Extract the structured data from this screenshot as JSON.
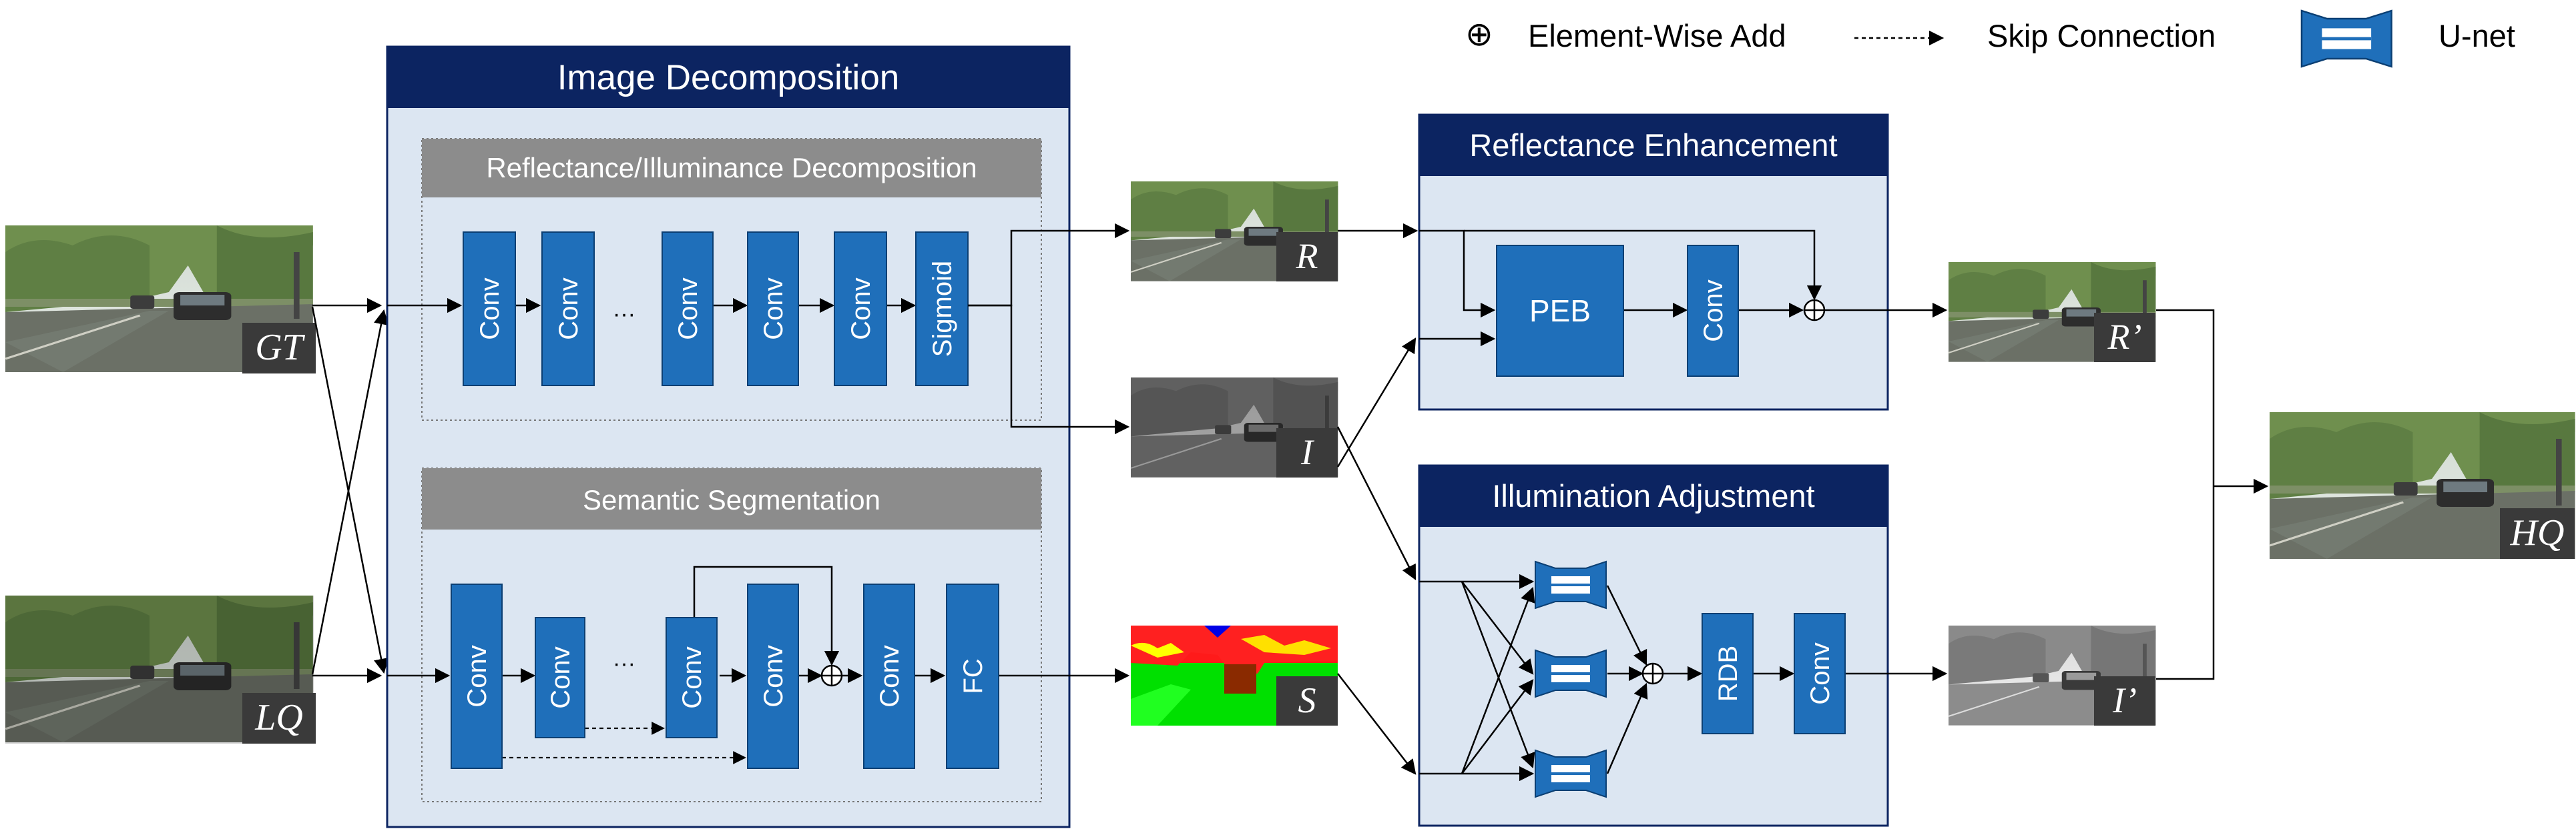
{
  "legend": {
    "add_symbol": "⊕",
    "add_label": "Element-Wise Add",
    "skip_label": "Skip Connection",
    "unet_label": "U-net"
  },
  "inputs": {
    "gt": "GT",
    "lq": "LQ"
  },
  "decomposition": {
    "title": "Image Decomposition",
    "ri": {
      "title": "Reflectance/Illuminance Decomposition",
      "layers": [
        "Conv",
        "Conv",
        "Conv",
        "Conv",
        "Conv",
        "Sigmoid"
      ],
      "ellipsis": "···"
    },
    "seg": {
      "title": "Semantic Segmentation",
      "layers": [
        "Conv",
        "Conv",
        "Conv",
        "Conv",
        "Conv",
        "FC"
      ],
      "ellipsis": "···",
      "add_symbol": "⊕"
    }
  },
  "maps": {
    "r": "R",
    "i": "I",
    "s": "S"
  },
  "enhancement": {
    "title": "Reflectance Enhancement",
    "peb": "PEB",
    "conv": "Conv",
    "add_symbol": "⊕"
  },
  "adjustment": {
    "title": "Illumination Adjustment",
    "rdb": "RDB",
    "conv": "Conv",
    "add_symbol": "⊕"
  },
  "outputs": {
    "r_prime": "R’",
    "i_prime": "I’",
    "hq": "HQ"
  },
  "colors": {
    "navy": "#0c2461",
    "panel_bg": "#dce6f2",
    "block": "#1f6fba",
    "grey_header": "#8c8c8c",
    "tag_bg": "#3a3a3a"
  }
}
